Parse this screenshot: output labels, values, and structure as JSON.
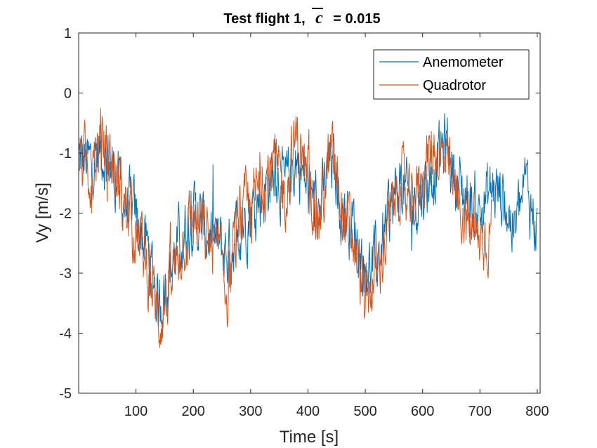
{
  "chart_data": {
    "type": "line",
    "title": {
      "prefix": "Test flight 1,",
      "symbol": "c",
      "suffix": "= 0.015"
    },
    "xlabel": "Time [s]",
    "ylabel": "Vy [m/s]",
    "xlim": [
      0,
      805
    ],
    "ylim": [
      -5,
      1
    ],
    "xticks": [
      100,
      200,
      300,
      400,
      500,
      600,
      700,
      800
    ],
    "yticks": [
      -5,
      -4,
      -3,
      -2,
      -1,
      0,
      1
    ],
    "grid": false,
    "legend_position": "top-right",
    "series": [
      {
        "name": "Anemometer",
        "color": "#0072BD",
        "x": [
          0,
          20,
          40,
          60,
          80,
          100,
          120,
          140,
          160,
          180,
          200,
          220,
          240,
          260,
          280,
          300,
          320,
          340,
          360,
          380,
          400,
          420,
          440,
          460,
          480,
          500,
          520,
          540,
          560,
          580,
          600,
          620,
          640,
          660,
          680,
          700,
          720,
          740,
          760,
          780,
          800
        ],
        "y": [
          -1.1,
          -1.2,
          -0.9,
          -1.3,
          -1.8,
          -2.1,
          -2.6,
          -3.5,
          -2.9,
          -2.4,
          -2.0,
          -2.3,
          -2.5,
          -2.7,
          -2.2,
          -2.0,
          -1.7,
          -1.3,
          -1.6,
          -1.1,
          -1.6,
          -2.0,
          -1.1,
          -1.9,
          -2.2,
          -3.0,
          -2.8,
          -2.1,
          -1.5,
          -1.9,
          -1.6,
          -1.3,
          -0.8,
          -1.5,
          -1.8,
          -2.0,
          -1.6,
          -1.7,
          -2.3,
          -1.5,
          -2.3
        ]
      },
      {
        "name": "Quadrotor",
        "color": "#D95319",
        "x": [
          0,
          20,
          40,
          60,
          80,
          100,
          120,
          140,
          160,
          180,
          200,
          220,
          240,
          260,
          280,
          300,
          320,
          340,
          360,
          380,
          400,
          420,
          440,
          460,
          480,
          500,
          520,
          540,
          560,
          580,
          600,
          620,
          640,
          660,
          680,
          700,
          720
        ],
        "y": [
          -1.0,
          -1.3,
          -0.8,
          -1.2,
          -1.9,
          -2.3,
          -2.9,
          -3.8,
          -3.2,
          -2.5,
          -2.1,
          -2.4,
          -2.6,
          -3.3,
          -2.1,
          -1.9,
          -1.5,
          -1.2,
          -1.7,
          -0.7,
          -1.5,
          -2.1,
          -1.0,
          -2.0,
          -2.5,
          -3.5,
          -3.0,
          -2.3,
          -1.4,
          -2.0,
          -1.3,
          -0.9,
          -1.2,
          -1.7,
          -2.2,
          -2.5,
          -2.2
        ]
      }
    ]
  }
}
